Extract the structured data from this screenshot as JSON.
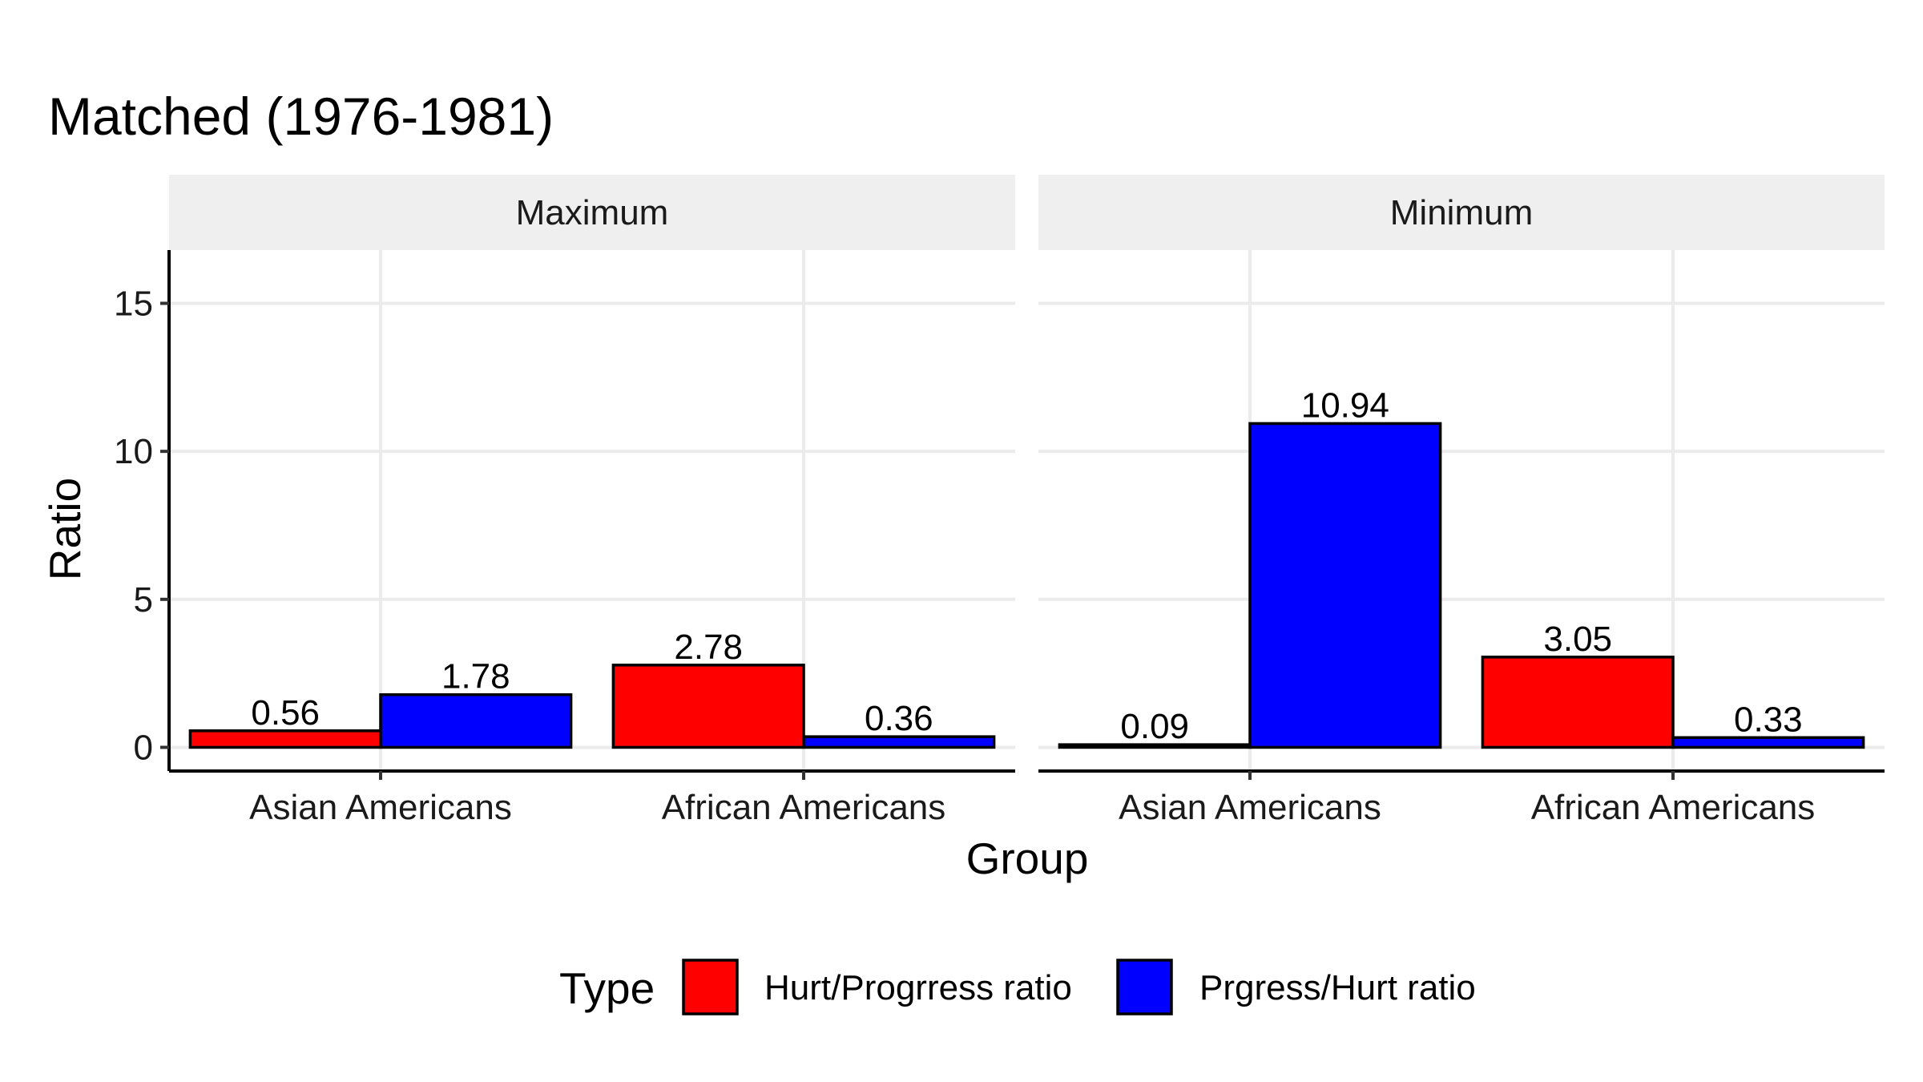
{
  "chart_data": {
    "type": "bar",
    "title": "Matched (1976-1981)",
    "xlabel": "Group",
    "ylabel": "Ratio",
    "ylim": [
      -0.8,
      16.8
    ],
    "yticks": [
      0,
      5,
      10,
      15
    ],
    "categories": [
      "Asian Americans",
      "African Americans"
    ],
    "grid": true,
    "legend": {
      "title": "Type",
      "position": "bottom",
      "items": [
        {
          "label": "Hurt/Progrress ratio",
          "color": "#ff0000"
        },
        {
          "label": "Prgress/Hurt ratio",
          "color": "#0000ff"
        }
      ]
    },
    "panels": [
      {
        "name": "Maximum",
        "series": [
          {
            "name": "Hurt/Progrress ratio",
            "color": "#ff0000",
            "values": [
              0.56,
              2.78
            ],
            "labels": [
              "0.56",
              "2.78"
            ]
          },
          {
            "name": "Prgress/Hurt ratio",
            "color": "#0000ff",
            "values": [
              1.78,
              0.36
            ],
            "labels": [
              "1.78",
              "0.36"
            ]
          }
        ]
      },
      {
        "name": "Minimum",
        "series": [
          {
            "name": "Hurt/Progrress ratio",
            "color": "#ff0000",
            "values": [
              0.09,
              3.05
            ],
            "labels": [
              "0.09",
              "3.05"
            ]
          },
          {
            "name": "Prgress/Hurt ratio",
            "color": "#0000ff",
            "values": [
              10.94,
              0.33
            ],
            "labels": [
              "10.94",
              "0.33"
            ]
          }
        ]
      }
    ]
  }
}
